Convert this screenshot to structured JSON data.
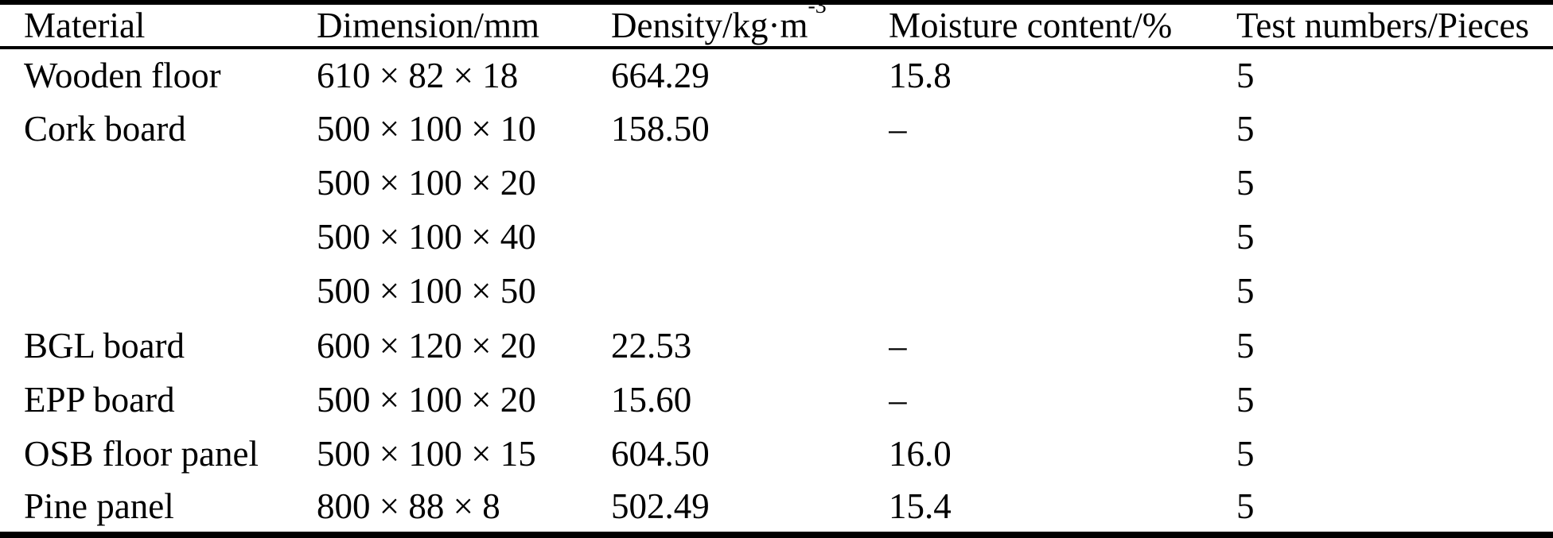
{
  "table": {
    "columns": [
      {
        "label": "Material"
      },
      {
        "label": "Dimension/mm"
      },
      {
        "label": "Density/kg·m",
        "sup": "-3"
      },
      {
        "label": "Moisture content/%"
      },
      {
        "label": "Test numbers/Pieces"
      }
    ],
    "rows": [
      [
        "Wooden floor",
        "610 × 82 × 18",
        "664.29",
        "15.8",
        "5"
      ],
      [
        "Cork board",
        "500 × 100 × 10",
        "158.50",
        "–",
        "5"
      ],
      [
        "",
        "500 × 100 × 20",
        "",
        "",
        "5"
      ],
      [
        "",
        "500 × 100 × 40",
        "",
        "",
        "5"
      ],
      [
        "",
        "500 × 100 × 50",
        "",
        "",
        "5"
      ],
      [
        "BGL board",
        "600 × 120 × 20",
        "22.53",
        "–",
        "5"
      ],
      [
        "EPP board",
        "500 × 100 × 20",
        "15.60",
        "–",
        "5"
      ],
      [
        "OSB floor panel",
        "500 × 100 × 15",
        "604.50",
        "16.0",
        "5"
      ],
      [
        "Pine panel",
        "800 × 88 × 8",
        "502.49",
        "15.4",
        "5"
      ]
    ]
  }
}
